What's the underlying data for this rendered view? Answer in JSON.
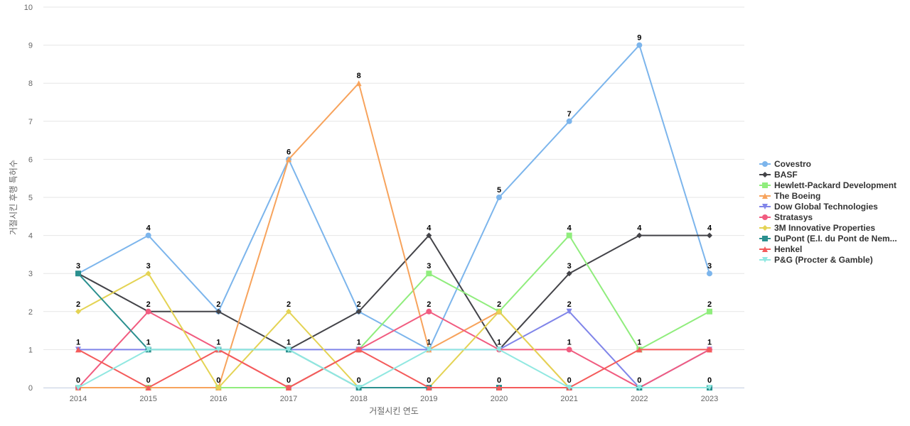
{
  "chart_data": {
    "type": "line",
    "x": [
      "2014",
      "2015",
      "2016",
      "2017",
      "2018",
      "2019",
      "2020",
      "2021",
      "2022",
      "2023"
    ],
    "xlabel": "거절시킨 연도",
    "ylabel": "거절시킨 후행 특허수",
    "ylim": [
      0,
      10
    ],
    "yticks": [
      0,
      1,
      2,
      3,
      4,
      5,
      6,
      7,
      8,
      9,
      10
    ],
    "grid": true,
    "legend_position": "right",
    "series": [
      {
        "name": "Covestro",
        "color": "#7cb5ec",
        "marker": "circle",
        "values": [
          3,
          4,
          2,
          6,
          2,
          1,
          5,
          7,
          9,
          3
        ]
      },
      {
        "name": "BASF",
        "color": "#434348",
        "marker": "diamond",
        "values": [
          3,
          2,
          2,
          1,
          2,
          4,
          1,
          3,
          4,
          4
        ]
      },
      {
        "name": "Hewlett-Packard Development",
        "color": "#90ed7d",
        "marker": "square",
        "values": [
          0,
          0,
          0,
          0,
          1,
          3,
          2,
          4,
          1,
          2
        ]
      },
      {
        "name": "The Boeing",
        "color": "#f7a35c",
        "marker": "triangle",
        "values": [
          0,
          0,
          0,
          6,
          8,
          1,
          2,
          0,
          0,
          0
        ]
      },
      {
        "name": "Dow Global Technologies",
        "color": "#8085e9",
        "marker": "triangle-down",
        "values": [
          1,
          1,
          1,
          1,
          1,
          1,
          1,
          2,
          0,
          1
        ]
      },
      {
        "name": "Stratasys",
        "color": "#f15c80",
        "marker": "circle",
        "values": [
          0,
          2,
          1,
          0,
          1,
          2,
          1,
          1,
          0,
          1
        ]
      },
      {
        "name": "3M Innovative Properties",
        "color": "#e4d354",
        "marker": "diamond",
        "values": [
          2,
          3,
          0,
          2,
          0,
          0,
          2,
          0,
          0,
          0
        ]
      },
      {
        "name": "DuPont (E.I. du Pont de Nem...",
        "color": "#2b908f",
        "marker": "square",
        "values": [
          3,
          1,
          1,
          1,
          0,
          0,
          0,
          0,
          0,
          0
        ]
      },
      {
        "name": "Henkel",
        "color": "#f45b5b",
        "marker": "triangle",
        "values": [
          1,
          0,
          1,
          0,
          1,
          0,
          0,
          0,
          1,
          1
        ]
      },
      {
        "name": "P&G (Procter & Gamble)",
        "color": "#91e8e1",
        "marker": "triangle-down",
        "values": [
          0,
          1,
          1,
          1,
          0,
          1,
          1,
          0,
          0,
          0
        ]
      }
    ],
    "data_labels": [
      {
        "x": "2014",
        "y": 3,
        "text": "3"
      },
      {
        "x": "2014",
        "y": 2,
        "text": "2"
      },
      {
        "x": "2014",
        "y": 1,
        "text": "1"
      },
      {
        "x": "2014",
        "y": 0,
        "text": "0"
      },
      {
        "x": "2015",
        "y": 4,
        "text": "4"
      },
      {
        "x": "2015",
        "y": 3,
        "text": "3"
      },
      {
        "x": "2015",
        "y": 2,
        "text": "2"
      },
      {
        "x": "2015",
        "y": 1,
        "text": "1"
      },
      {
        "x": "2015",
        "y": 0,
        "text": "0"
      },
      {
        "x": "2016",
        "y": 2,
        "text": "2"
      },
      {
        "x": "2016",
        "y": 1,
        "text": "1"
      },
      {
        "x": "2016",
        "y": 0,
        "text": "0"
      },
      {
        "x": "2017",
        "y": 6,
        "text": "6"
      },
      {
        "x": "2017",
        "y": 2,
        "text": "2"
      },
      {
        "x": "2017",
        "y": 1,
        "text": "1"
      },
      {
        "x": "2017",
        "y": 0,
        "text": "0"
      },
      {
        "x": "2018",
        "y": 8,
        "text": "8"
      },
      {
        "x": "2018",
        "y": 2,
        "text": "2"
      },
      {
        "x": "2018",
        "y": 1,
        "text": "1"
      },
      {
        "x": "2018",
        "y": 0,
        "text": "0"
      },
      {
        "x": "2019",
        "y": 4,
        "text": "4"
      },
      {
        "x": "2019",
        "y": 3,
        "text": "3"
      },
      {
        "x": "2019",
        "y": 2,
        "text": "2"
      },
      {
        "x": "2019",
        "y": 1,
        "text": "1"
      },
      {
        "x": "2019",
        "y": 0,
        "text": "0"
      },
      {
        "x": "2020",
        "y": 5,
        "text": "5"
      },
      {
        "x": "2020",
        "y": 2,
        "text": "2"
      },
      {
        "x": "2020",
        "y": 1,
        "text": "1"
      },
      {
        "x": "2020",
        "y": 0,
        "text": "0"
      },
      {
        "x": "2021",
        "y": 7,
        "text": "7"
      },
      {
        "x": "2021",
        "y": 4,
        "text": "4"
      },
      {
        "x": "2021",
        "y": 3,
        "text": "3"
      },
      {
        "x": "2021",
        "y": 2,
        "text": "2"
      },
      {
        "x": "2021",
        "y": 1,
        "text": "1"
      },
      {
        "x": "2021",
        "y": 0,
        "text": "0"
      },
      {
        "x": "2022",
        "y": 9,
        "text": "9"
      },
      {
        "x": "2022",
        "y": 4,
        "text": "4"
      },
      {
        "x": "2022",
        "y": 1,
        "text": "1"
      },
      {
        "x": "2022",
        "y": 0,
        "text": "0"
      },
      {
        "x": "2023",
        "y": 4,
        "text": "4"
      },
      {
        "x": "2023",
        "y": 3,
        "text": "3"
      },
      {
        "x": "2023",
        "y": 2,
        "text": "2"
      },
      {
        "x": "2023",
        "y": 1,
        "text": "1"
      },
      {
        "x": "2023",
        "y": 0,
        "text": "0"
      }
    ],
    "colors": {
      "grid": "#e6e6e6",
      "axis_line": "#ccd6eb",
      "tick_text": "#666666",
      "label_text": "#000000",
      "legend_text": "#333333"
    }
  }
}
